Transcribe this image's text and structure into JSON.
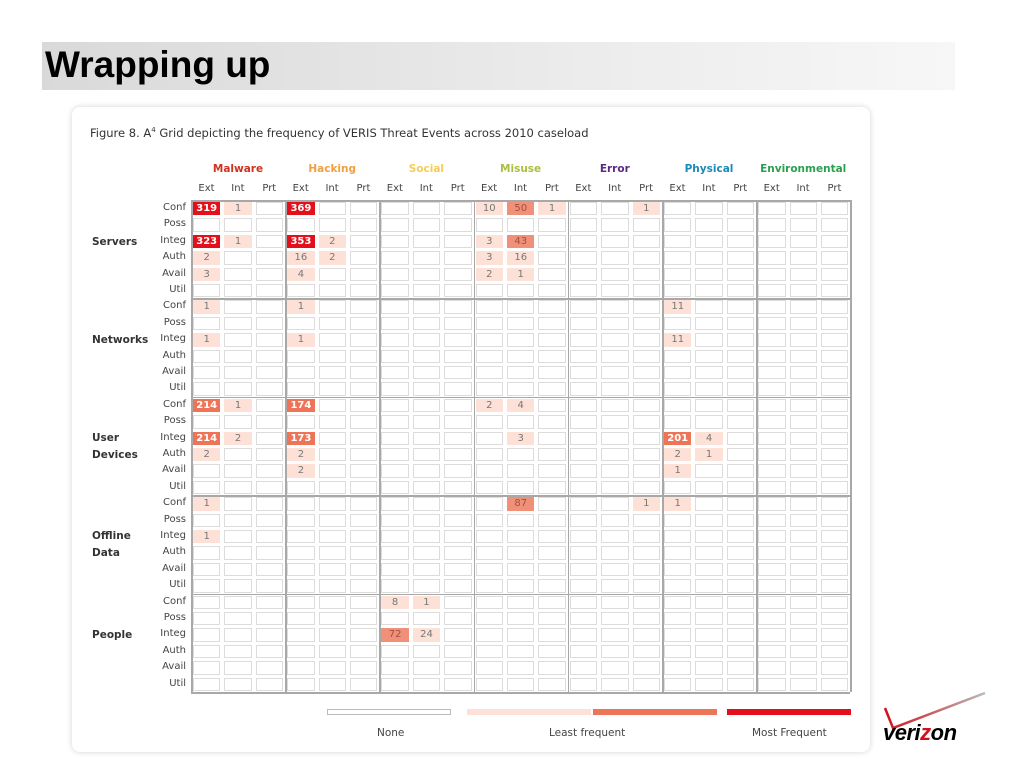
{
  "slide_title": "Wrapping up",
  "figure": {
    "title_prefix": "Figure 8. A",
    "title_sup": "4",
    "title_suffix": " Grid depicting the frequency of VERIS Threat Events across 2010 caseload"
  },
  "categories": [
    {
      "label": "Malware",
      "color": "#d0321e"
    },
    {
      "label": "Hacking",
      "color": "#f0a040"
    },
    {
      "label": "Social",
      "color": "#f5cc5a"
    },
    {
      "label": "Misuse",
      "color": "#a8c040"
    },
    {
      "label": "Error",
      "color": "#5a2a82"
    },
    {
      "label": "Physical",
      "color": "#1a8ab8"
    },
    {
      "label": "Environmental",
      "color": "#2aa050"
    }
  ],
  "actors": [
    "Ext",
    "Int",
    "Prt"
  ],
  "attributes": [
    "Conf",
    "Poss",
    "Integ",
    "Auth",
    "Avail",
    "Util"
  ],
  "assets": [
    {
      "label": [
        "Servers"
      ]
    },
    {
      "label": [
        "Networks"
      ]
    },
    {
      "label": [
        "User",
        "Devices"
      ]
    },
    {
      "label": [
        "Offline",
        "Data"
      ]
    },
    {
      "label": [
        "People"
      ]
    }
  ],
  "level_colors": {
    "high": "#e3101c",
    "strong": "#ee7458",
    "mid": "#f09078",
    "low": "#fde1d6"
  },
  "cells": [
    [
      0,
      0,
      0,
      "319",
      "high"
    ],
    [
      0,
      0,
      1,
      "1",
      "low"
    ],
    [
      0,
      0,
      3,
      "369",
      "high"
    ],
    [
      0,
      0,
      9,
      "10",
      "low"
    ],
    [
      0,
      0,
      10,
      "50",
      "mid"
    ],
    [
      0,
      0,
      11,
      "1",
      "low"
    ],
    [
      0,
      0,
      14,
      "1",
      "low"
    ],
    [
      0,
      2,
      0,
      "323",
      "high"
    ],
    [
      0,
      2,
      1,
      "1",
      "low"
    ],
    [
      0,
      2,
      3,
      "353",
      "high"
    ],
    [
      0,
      2,
      4,
      "2",
      "low"
    ],
    [
      0,
      2,
      9,
      "3",
      "low"
    ],
    [
      0,
      2,
      10,
      "43",
      "mid"
    ],
    [
      0,
      3,
      0,
      "2",
      "low"
    ],
    [
      0,
      3,
      3,
      "16",
      "low"
    ],
    [
      0,
      3,
      4,
      "2",
      "low"
    ],
    [
      0,
      3,
      9,
      "3",
      "low"
    ],
    [
      0,
      3,
      10,
      "16",
      "low"
    ],
    [
      0,
      4,
      0,
      "3",
      "low"
    ],
    [
      0,
      4,
      3,
      "4",
      "low"
    ],
    [
      0,
      4,
      9,
      "2",
      "low"
    ],
    [
      0,
      4,
      10,
      "1",
      "low"
    ],
    [
      1,
      0,
      0,
      "1",
      "low"
    ],
    [
      1,
      0,
      3,
      "1",
      "low"
    ],
    [
      1,
      0,
      15,
      "11",
      "low"
    ],
    [
      1,
      2,
      0,
      "1",
      "low"
    ],
    [
      1,
      2,
      3,
      "1",
      "low"
    ],
    [
      1,
      2,
      15,
      "11",
      "low"
    ],
    [
      2,
      0,
      0,
      "214",
      "strong"
    ],
    [
      2,
      0,
      1,
      "1",
      "low"
    ],
    [
      2,
      0,
      3,
      "174",
      "strong"
    ],
    [
      2,
      0,
      9,
      "2",
      "low"
    ],
    [
      2,
      0,
      10,
      "4",
      "low"
    ],
    [
      2,
      2,
      0,
      "214",
      "strong"
    ],
    [
      2,
      2,
      1,
      "2",
      "low"
    ],
    [
      2,
      2,
      3,
      "173",
      "strong"
    ],
    [
      2,
      2,
      10,
      "3",
      "low"
    ],
    [
      2,
      2,
      15,
      "201",
      "strong"
    ],
    [
      2,
      2,
      16,
      "4",
      "low"
    ],
    [
      2,
      3,
      0,
      "2",
      "low"
    ],
    [
      2,
      3,
      3,
      "2",
      "low"
    ],
    [
      2,
      3,
      15,
      "2",
      "low"
    ],
    [
      2,
      3,
      16,
      "1",
      "low"
    ],
    [
      2,
      4,
      3,
      "2",
      "low"
    ],
    [
      2,
      4,
      15,
      "1",
      "low"
    ],
    [
      3,
      0,
      0,
      "1",
      "low"
    ],
    [
      3,
      0,
      10,
      "87",
      "mid"
    ],
    [
      3,
      0,
      14,
      "1",
      "low"
    ],
    [
      3,
      0,
      15,
      "1",
      "low"
    ],
    [
      3,
      2,
      0,
      "1",
      "low"
    ],
    [
      4,
      0,
      6,
      "8",
      "low"
    ],
    [
      4,
      0,
      7,
      "1",
      "low"
    ],
    [
      4,
      2,
      6,
      "72",
      "mid"
    ],
    [
      4,
      2,
      7,
      "24",
      "low"
    ]
  ],
  "legend": [
    {
      "label": "None",
      "level": "none"
    },
    {
      "label": "Least frequent",
      "level": "low"
    },
    {
      "label": "",
      "level": "strong"
    },
    {
      "label": "Most Frequent",
      "level": "high"
    }
  ],
  "logo_text": "verizon"
}
